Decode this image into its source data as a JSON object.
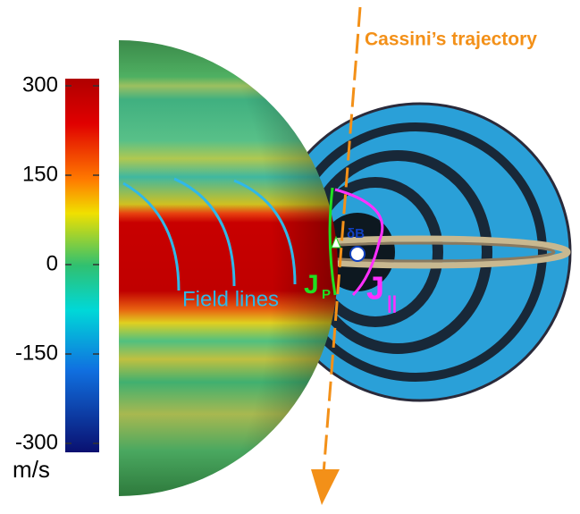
{
  "colorbar": {
    "ticks": [
      300,
      150,
      0,
      -150,
      -300
    ],
    "unit": "m/s"
  },
  "labels": {
    "trajectory": "Cassini’s trajectory",
    "field_lines": "Field lines",
    "jp": {
      "main": "J",
      "sub": "P"
    },
    "jpar": {
      "main": "J",
      "sub": "||"
    },
    "db": "δB"
  }
}
